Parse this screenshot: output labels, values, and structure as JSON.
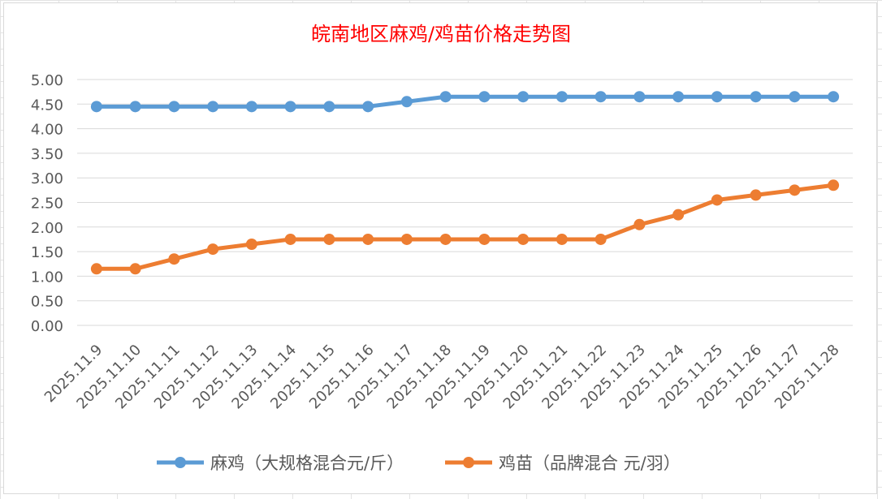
{
  "chart_data": {
    "type": "line",
    "title": "皖南地区麻鸡/鸡苗价格走势图",
    "categories": [
      "2025.11.9",
      "2025.11.10",
      "2025.11.11",
      "2025.11.12",
      "2025.11.13",
      "2025.11.14",
      "2025.11.15",
      "2025.11.16",
      "2025.11.17",
      "2025.11.18",
      "2025.11.19",
      "2025.11.20",
      "2025.11.21",
      "2025.11.22",
      "2025.11.23",
      "2025.11.24",
      "2025.11.25",
      "2025.11.26",
      "2025.11.27",
      "2025.11.28"
    ],
    "series": [
      {
        "name": "麻鸡（大规格混合元/斤）",
        "color": "#5b9bd5",
        "values": [
          4.45,
          4.45,
          4.45,
          4.45,
          4.45,
          4.45,
          4.45,
          4.45,
          4.55,
          4.65,
          4.65,
          4.65,
          4.65,
          4.65,
          4.65,
          4.65,
          4.65,
          4.65,
          4.65,
          4.65
        ]
      },
      {
        "name": "鸡苗（品牌混合 元/羽）",
        "color": "#ed7d31",
        "values": [
          1.15,
          1.15,
          1.35,
          1.55,
          1.65,
          1.75,
          1.75,
          1.75,
          1.75,
          1.75,
          1.75,
          1.75,
          1.75,
          1.75,
          2.05,
          2.25,
          2.55,
          2.65,
          2.75,
          2.85
        ]
      }
    ],
    "ylim": [
      0,
      5
    ],
    "yticks": [
      "0.00",
      "0.50",
      "1.00",
      "1.50",
      "2.00",
      "2.50",
      "3.00",
      "3.50",
      "4.00",
      "4.50",
      "5.00"
    ],
    "xlabel": "",
    "ylabel": "",
    "grid": true,
    "legend": "bottom",
    "title_color": "#ff0000",
    "grid_color": "#d9d9d9",
    "text_color": "#595959"
  }
}
